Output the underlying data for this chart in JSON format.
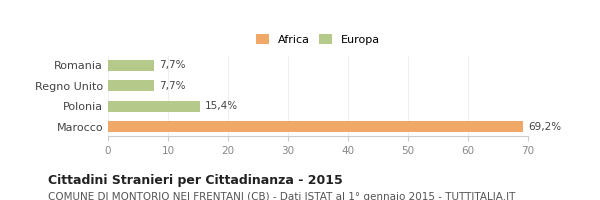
{
  "categories": [
    "Marocco",
    "Polonia",
    "Regno Unito",
    "Romania"
  ],
  "values": [
    69.2,
    15.4,
    7.7,
    7.7
  ],
  "labels": [
    "69,2%",
    "15,4%",
    "7,7%",
    "7,7%"
  ],
  "colors": [
    "#f0a868",
    "#b5c98a",
    "#b5c98a",
    "#b5c98a"
  ],
  "legend": [
    {
      "label": "Africa",
      "color": "#f0a868"
    },
    {
      "label": "Europa",
      "color": "#b5c98a"
    }
  ],
  "xlim": [
    0,
    70
  ],
  "xticks": [
    0,
    10,
    20,
    30,
    40,
    50,
    60,
    70
  ],
  "title": "Cittadini Stranieri per Cittadinanza - 2015",
  "subtitle": "COMUNE DI MONTORIO NEI FRENTANI (CB) - Dati ISTAT al 1° gennaio 2015 - TUTTITALIA.IT",
  "title_fontsize": 9,
  "subtitle_fontsize": 7.5,
  "background_color": "#ffffff"
}
